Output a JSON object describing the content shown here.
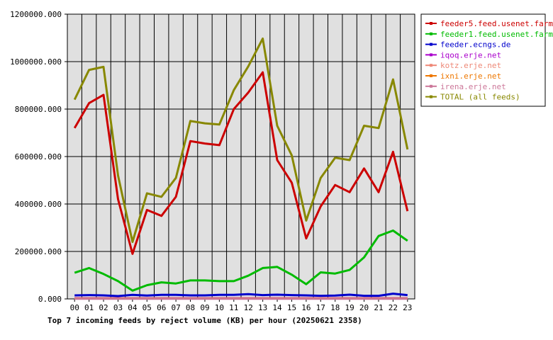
{
  "chart_data": {
    "type": "line",
    "title": "Top 7 incoming feeds by reject volume (KB) per hour (20250621 2358)",
    "xlabel": "",
    "ylabel": "",
    "categories": [
      "00",
      "01",
      "02",
      "03",
      "04",
      "05",
      "06",
      "07",
      "08",
      "09",
      "10",
      "11",
      "12",
      "13",
      "14",
      "15",
      "16",
      "17",
      "18",
      "19",
      "20",
      "21",
      "22",
      "23"
    ],
    "ylim": [
      0,
      1200000
    ],
    "yticks": [
      0,
      200000,
      400000,
      600000,
      800000,
      1000000,
      1200000
    ],
    "ytick_labels": [
      "0.000",
      "200000.000",
      "400000.000",
      "600000.000",
      "800000.000",
      "1000000.000",
      "1200000.000"
    ],
    "grid": true,
    "legend_position": "right",
    "series": [
      {
        "name": "feeder5.feed.usenet.farm",
        "color": "#cc0000",
        "values": [
          720000,
          825000,
          860000,
          420000,
          190000,
          375000,
          350000,
          430000,
          665000,
          655000,
          648000,
          800000,
          870000,
          955000,
          585000,
          490000,
          255000,
          390000,
          480000,
          450000,
          550000,
          450000,
          620000,
          370000
        ]
      },
      {
        "name": "feeder1.feed.usenet.farm",
        "color": "#00bb00",
        "values": [
          110000,
          130000,
          105000,
          75000,
          35000,
          58000,
          70000,
          65000,
          78000,
          78000,
          75000,
          75000,
          98000,
          130000,
          135000,
          102000,
          62000,
          112000,
          107000,
          122000,
          175000,
          265000,
          288000,
          245000
        ]
      },
      {
        "name": "feeder.ecngs.de",
        "color": "#0000cc",
        "values": [
          15000,
          16000,
          15000,
          12000,
          17000,
          14000,
          17000,
          17000,
          15000,
          15000,
          17000,
          17000,
          20000,
          16000,
          18000,
          16000,
          15000,
          13000,
          14000,
          18000,
          13000,
          13000,
          22000,
          16000
        ]
      },
      {
        "name": "iqoq.erje.net",
        "color": "#aa00cc",
        "values": [
          3000,
          3000,
          3000,
          3000,
          3000,
          3000,
          3000,
          3000,
          3000,
          3000,
          3000,
          3000,
          3000,
          3000,
          3000,
          3000,
          3000,
          3000,
          3000,
          3000,
          3000,
          3000,
          3000,
          3000
        ]
      },
      {
        "name": "kotz.erje.net",
        "color": "#ee8877",
        "values": [
          2000,
          2000,
          2000,
          2000,
          2000,
          2000,
          2000,
          2000,
          2000,
          2000,
          2000,
          2000,
          2000,
          2000,
          2000,
          2000,
          2000,
          2000,
          2000,
          2000,
          2000,
          2000,
          2000,
          2000
        ]
      },
      {
        "name": "ixni.erje.net",
        "color": "#ee7700",
        "values": [
          1500,
          1500,
          1500,
          1500,
          1500,
          1500,
          1500,
          1500,
          1500,
          1500,
          1500,
          1500,
          1500,
          1500,
          1500,
          1500,
          1500,
          1500,
          1500,
          1500,
          1500,
          1500,
          1500,
          1500
        ]
      },
      {
        "name": "irena.erje.net",
        "color": "#cc7799",
        "values": [
          1000,
          1000,
          1000,
          1000,
          1000,
          1000,
          1000,
          1000,
          1000,
          1000,
          1000,
          1000,
          1000,
          1000,
          1000,
          1000,
          1000,
          1000,
          1000,
          1000,
          1000,
          1000,
          1000,
          1000
        ]
      },
      {
        "name": "TOTAL (all feeds)",
        "color": "#888800",
        "values": [
          840000,
          965000,
          978000,
          520000,
          240000,
          445000,
          430000,
          510000,
          750000,
          740000,
          735000,
          880000,
          980000,
          1097000,
          730000,
          605000,
          330000,
          510000,
          595000,
          585000,
          730000,
          720000,
          925000,
          630000
        ]
      }
    ]
  }
}
